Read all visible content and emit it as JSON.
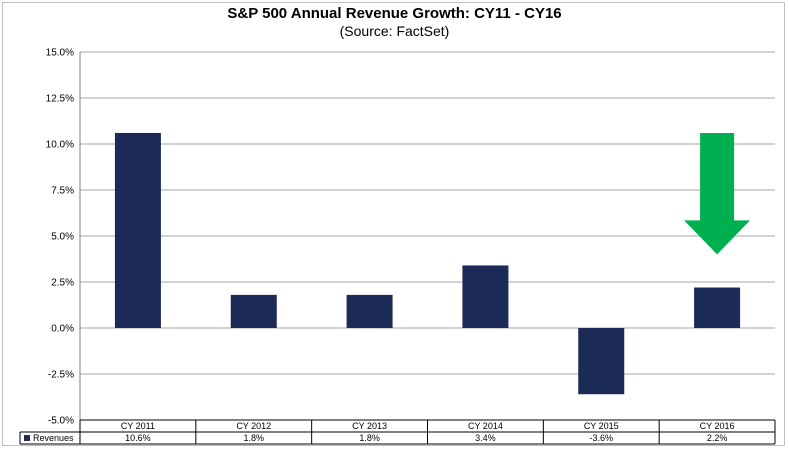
{
  "chart_data": {
    "type": "bar",
    "title": "S&P 500 Annual Revenue Growth:  CY11 - CY16",
    "subtitle": "(Source: FactSet)",
    "categories": [
      "CY 2011",
      "CY 2012",
      "CY 2013",
      "CY 2014",
      "CY 2015",
      "CY 2016"
    ],
    "series": [
      {
        "name": "Revenues",
        "values": [
          10.6,
          1.8,
          1.8,
          3.4,
          -3.6,
          2.2
        ],
        "labels": [
          "10.6%",
          "1.8%",
          "1.8%",
          "3.4%",
          "-3.6%",
          "2.2%"
        ]
      }
    ],
    "ylim": [
      -5.0,
      15.0
    ],
    "yticks": [
      -5.0,
      -2.5,
      0.0,
      2.5,
      5.0,
      7.5,
      10.0,
      12.5,
      15.0
    ],
    "ytick_labels": [
      "-5.0%",
      "-2.5%",
      "0.0%",
      "2.5%",
      "5.0%",
      "7.5%",
      "10.0%",
      "12.5%",
      "15.0%"
    ],
    "grid": true,
    "legend": "data-table-left",
    "annotation": {
      "type": "down-arrow",
      "category": "CY 2016",
      "from_value": 10.6,
      "to_value": 4.0
    },
    "colors": {
      "bar": "#1b2a57",
      "arrow": "#00b050",
      "grid": "#a6a6a6",
      "axis": "#808080"
    }
  }
}
